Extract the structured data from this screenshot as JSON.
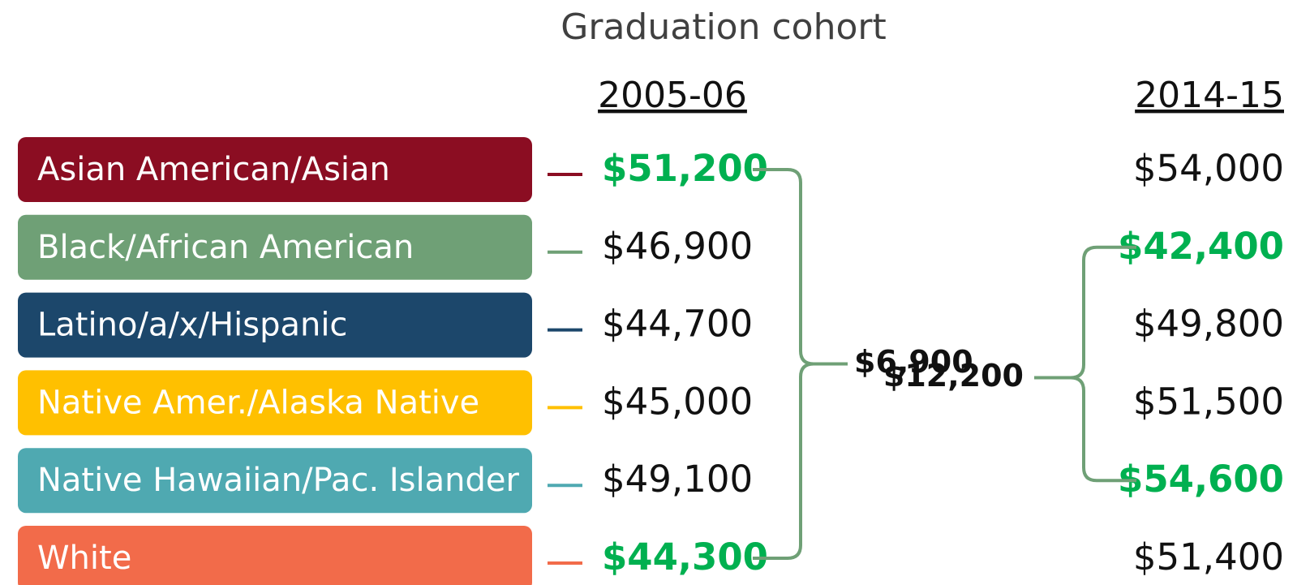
{
  "title": "Graduation cohort",
  "columns": [
    "2005-06",
    "2014-15"
  ],
  "rows": [
    {
      "label": "Asian American/Asian",
      "color": "#8b0d22",
      "values": [
        "$51,200",
        "$54,000"
      ],
      "highlight": [
        true,
        false
      ]
    },
    {
      "label": "Black/African American",
      "color": "#6fa076",
      "values": [
        "$46,900",
        "$42,400"
      ],
      "highlight": [
        false,
        true
      ]
    },
    {
      "label": "Latino/a/x/Hispanic",
      "color": "#1c476b",
      "values": [
        "$44,700",
        "$49,800"
      ],
      "highlight": [
        false,
        false
      ]
    },
    {
      "label": "Native Amer./Alaska Native",
      "color": "#ffc000",
      "values": [
        "$45,000",
        "$51,500"
      ],
      "highlight": [
        false,
        false
      ]
    },
    {
      "label": "Native Hawaiian/Pac. Islander",
      "color": "#4fa9b1",
      "values": [
        "$49,100",
        "$54,600"
      ],
      "highlight": [
        false,
        true
      ]
    },
    {
      "label": "White",
      "color": "#f26b4a",
      "values": [
        "$44,300",
        "$51,400"
      ],
      "highlight": [
        true,
        false
      ]
    }
  ],
  "gaps": [
    "$6,900",
    "$12,200"
  ]
}
